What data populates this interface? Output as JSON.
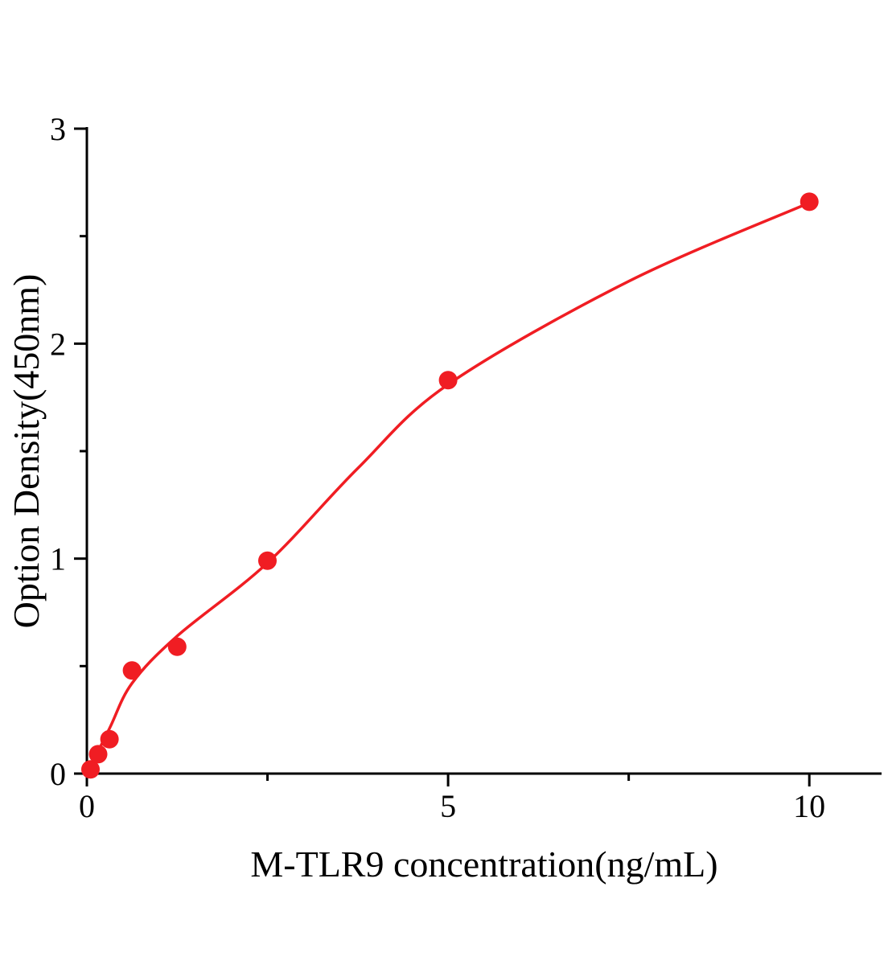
{
  "page": {
    "background": "#ffffff"
  },
  "chart_data": {
    "type": "scatter",
    "title": "",
    "xlabel": "M-TLR9 concentration(ng/mL)",
    "ylabel": "Option Density(450nm)",
    "xlim": [
      0,
      11
    ],
    "ylim": [
      0,
      3
    ],
    "xticks": [
      0,
      5,
      10
    ],
    "yticks": [
      0,
      1,
      2,
      3
    ],
    "minor_xticks": [
      2.5,
      7.5
    ],
    "minor_yticks": [
      0.5,
      1.5,
      2.5
    ],
    "grid": false,
    "legend": "none",
    "accent_color": "#f01d23",
    "series": [
      {
        "marker": "circle",
        "color": "#f01d23",
        "points": [
          {
            "x": 0.05,
            "y": 0.02
          },
          {
            "x": 0.156,
            "y": 0.09
          },
          {
            "x": 0.313,
            "y": 0.16
          },
          {
            "x": 0.625,
            "y": 0.48
          },
          {
            "x": 1.25,
            "y": 0.59
          },
          {
            "x": 2.5,
            "y": 0.99
          },
          {
            "x": 5.0,
            "y": 1.83
          },
          {
            "x": 10.0,
            "y": 2.66
          }
        ]
      }
    ],
    "fit_curve": {
      "color": "#f01d23",
      "points": [
        {
          "x": 0.0,
          "y": 0.0
        },
        {
          "x": 0.313,
          "y": 0.21
        },
        {
          "x": 0.625,
          "y": 0.42
        },
        {
          "x": 1.25,
          "y": 0.64
        },
        {
          "x": 2.5,
          "y": 0.98
        },
        {
          "x": 3.75,
          "y": 1.42
        },
        {
          "x": 5.0,
          "y": 1.81
        },
        {
          "x": 7.5,
          "y": 2.29
        },
        {
          "x": 10.0,
          "y": 2.655
        }
      ]
    }
  }
}
